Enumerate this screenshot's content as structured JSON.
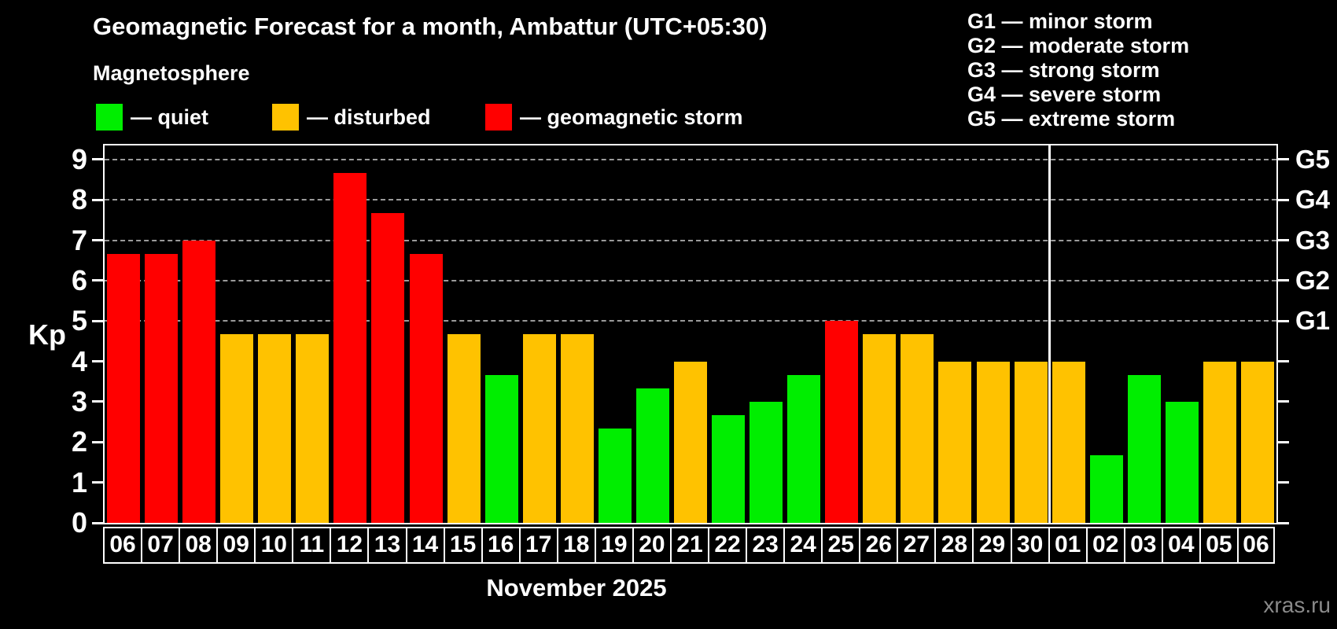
{
  "header": {
    "title": "Geomagnetic Forecast for a month, Ambattur (UTC+05:30)",
    "subtitle": "Magnetosphere"
  },
  "legend": {
    "items": [
      {
        "label": "— quiet",
        "status": "quiet",
        "color": "#00ee00"
      },
      {
        "label": "— disturbed",
        "status": "disturbed",
        "color": "#ffc200"
      },
      {
        "label": "— geomagnetic storm",
        "status": "storm",
        "color": "#ff0000"
      }
    ]
  },
  "storm_scale_legend": {
    "items": [
      "G1 — minor storm",
      "G2 — moderate storm",
      "G3 — strong storm",
      "G4 — severe storm",
      "G5 — extreme storm"
    ]
  },
  "chart_data": {
    "type": "bar",
    "title": "Geomagnetic Forecast for a month, Ambattur (UTC+05:30)",
    "xlabel": "November 2025",
    "ylabel": "Kp",
    "ylim": [
      0,
      9.35
    ],
    "yticks": [
      0,
      1,
      2,
      3,
      4,
      5,
      6,
      7,
      8,
      9
    ],
    "gridlines_at": [
      5,
      6,
      7,
      8,
      9
    ],
    "grid": "dashed horizontal at Kp 5-9 only",
    "legend_position": "top-left",
    "right_axis_labels": [
      {
        "label": "G1",
        "kp": 5
      },
      {
        "label": "G2",
        "kp": 6
      },
      {
        "label": "G3",
        "kp": 7
      },
      {
        "label": "G4",
        "kp": 8
      },
      {
        "label": "G5",
        "kp": 9
      }
    ],
    "month_separator_before_index": 25,
    "status_colors": {
      "quiet": "#00ee00",
      "disturbed": "#ffc200",
      "storm": "#ff0000"
    },
    "categories": [
      "06",
      "07",
      "08",
      "09",
      "10",
      "11",
      "12",
      "13",
      "14",
      "15",
      "16",
      "17",
      "18",
      "19",
      "20",
      "21",
      "22",
      "23",
      "24",
      "25",
      "26",
      "27",
      "28",
      "29",
      "30",
      "01",
      "02",
      "03",
      "04",
      "05",
      "06"
    ],
    "values": [
      6.67,
      6.67,
      7,
      4.67,
      4.67,
      4.67,
      8.67,
      7.67,
      6.67,
      4.67,
      3.67,
      4.67,
      4.67,
      2.33,
      3.33,
      4,
      2.67,
      3,
      3.67,
      5,
      4.67,
      4.67,
      4,
      4,
      4,
      4,
      1.67,
      3.67,
      3,
      4,
      4
    ],
    "bars": [
      {
        "day": "06",
        "value": 6.67,
        "status": "storm"
      },
      {
        "day": "07",
        "value": 6.67,
        "status": "storm"
      },
      {
        "day": "08",
        "value": 7.0,
        "status": "storm"
      },
      {
        "day": "09",
        "value": 4.67,
        "status": "disturbed"
      },
      {
        "day": "10",
        "value": 4.67,
        "status": "disturbed"
      },
      {
        "day": "11",
        "value": 4.67,
        "status": "disturbed"
      },
      {
        "day": "12",
        "value": 8.67,
        "status": "storm"
      },
      {
        "day": "13",
        "value": 7.67,
        "status": "storm"
      },
      {
        "day": "14",
        "value": 6.67,
        "status": "storm"
      },
      {
        "day": "15",
        "value": 4.67,
        "status": "disturbed"
      },
      {
        "day": "16",
        "value": 3.67,
        "status": "quiet"
      },
      {
        "day": "17",
        "value": 4.67,
        "status": "disturbed"
      },
      {
        "day": "18",
        "value": 4.67,
        "status": "disturbed"
      },
      {
        "day": "19",
        "value": 2.33,
        "status": "quiet"
      },
      {
        "day": "20",
        "value": 3.33,
        "status": "quiet"
      },
      {
        "day": "21",
        "value": 4.0,
        "status": "disturbed"
      },
      {
        "day": "22",
        "value": 2.67,
        "status": "quiet"
      },
      {
        "day": "23",
        "value": 3.0,
        "status": "quiet"
      },
      {
        "day": "24",
        "value": 3.67,
        "status": "quiet"
      },
      {
        "day": "25",
        "value": 5.0,
        "status": "storm"
      },
      {
        "day": "26",
        "value": 4.67,
        "status": "disturbed"
      },
      {
        "day": "27",
        "value": 4.67,
        "status": "disturbed"
      },
      {
        "day": "28",
        "value": 4.0,
        "status": "disturbed"
      },
      {
        "day": "29",
        "value": 4.0,
        "status": "disturbed"
      },
      {
        "day": "30",
        "value": 4.0,
        "status": "disturbed"
      },
      {
        "day": "01",
        "value": 4.0,
        "status": "disturbed"
      },
      {
        "day": "02",
        "value": 1.67,
        "status": "quiet"
      },
      {
        "day": "03",
        "value": 3.67,
        "status": "quiet"
      },
      {
        "day": "04",
        "value": 3.0,
        "status": "quiet"
      },
      {
        "day": "05",
        "value": 4.0,
        "status": "disturbed"
      },
      {
        "day": "06",
        "value": 4.0,
        "status": "disturbed"
      }
    ]
  },
  "footer": {
    "watermark": "xras.ru"
  }
}
